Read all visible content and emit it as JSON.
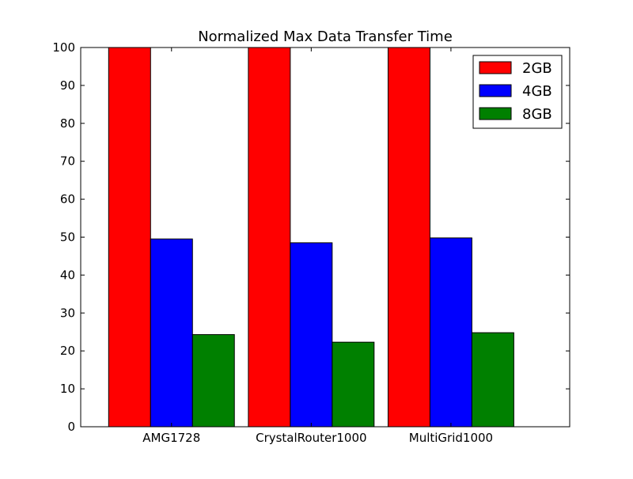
{
  "chart_data": {
    "type": "bar",
    "title": "Normalized Max Data Transfer Time",
    "xlabel": "",
    "ylabel": "",
    "categories": [
      "AMG1728",
      "CrystalRouter1000",
      "MultiGrid1000"
    ],
    "series": [
      {
        "name": "2GB",
        "values": [
          100,
          100,
          100
        ],
        "color": "#ff0000"
      },
      {
        "name": "4GB",
        "values": [
          49.5,
          48.5,
          49.8
        ],
        "color": "#0000ff"
      },
      {
        "name": "8GB",
        "values": [
          24.3,
          22.3,
          24.8
        ],
        "color": "#008000"
      }
    ],
    "ylim": [
      0,
      100
    ],
    "yticks": [
      "0",
      "10",
      "20",
      "30",
      "40",
      "50",
      "60",
      "70",
      "80",
      "90",
      "100"
    ],
    "grid": false,
    "legend_position": "top-right"
  }
}
